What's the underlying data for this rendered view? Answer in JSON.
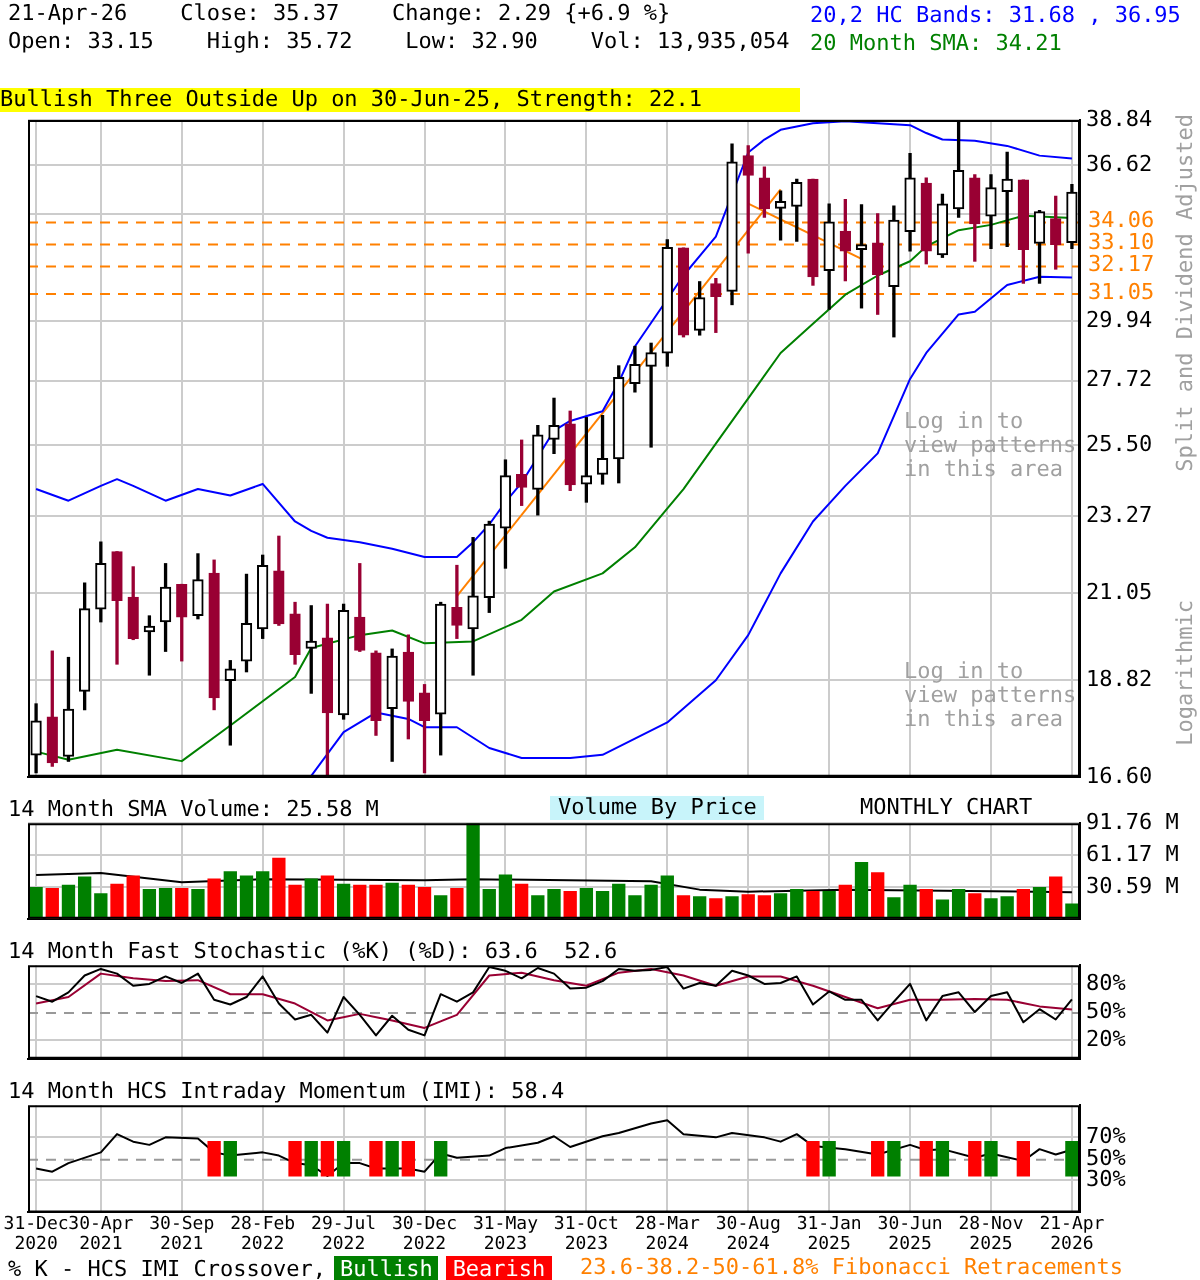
{
  "chart_data": [
    {
      "type": "candlestick",
      "title": "21-Apr-26    Close: 35.37    Change: 2.29 {+6.9 %}",
      "subtitle": "Open: 33.15    High: 35.72    Low: 32.90    Vol: 13,935,054",
      "ylabel": "Split and Dividend Adjusted",
      "categories": [
        null,
        null,
        null,
        null,
        null,
        null,
        null,
        null,
        null,
        null,
        null,
        null,
        null,
        null,
        null,
        null,
        null,
        null,
        null,
        null,
        null,
        null,
        null,
        null,
        null,
        null,
        null,
        null,
        null,
        null,
        null,
        null,
        null,
        null,
        null,
        null,
        null,
        null,
        null,
        null,
        null,
        null,
        null,
        null,
        null,
        null,
        null,
        null,
        null,
        null,
        null,
        null,
        null,
        null,
        null,
        null,
        null,
        null,
        null,
        null,
        null,
        null,
        null,
        null,
        null
      ],
      "log": true,
      "ylim": [
        16.6,
        38.84
      ],
      "yticks": [
        {
          "value": 16.6,
          "label": "16.60"
        },
        18.82,
        21.05,
        23.27,
        {
          "value": 25.5,
          "label": "25.50"
        },
        27.72,
        29.94,
        {
          "value": 32.17,
          "label": null
        },
        {
          "value": 34.39,
          "label": null
        },
        36.62,
        38.84
      ],
      "grid": true,
      "tick_labels": "y",
      "legend": "top right",
      "series": [
        {
          "colors": [
            "#000000",
            "#990033",
            "#000000",
            "#000000",
            "#000000",
            "#990033",
            "#990033",
            "#000000",
            "#000000",
            "#990033",
            "#000000",
            "#990033",
            "#000000",
            "#000000",
            "#000000",
            "#990033",
            "#990033",
            "#000000",
            "#990033",
            "#000000",
            "#990033",
            "#990033",
            "#000000",
            "#990033",
            "#990033",
            "#000000",
            "#990033",
            "#000000",
            "#000000",
            "#000000",
            "#990033",
            "#000000",
            "#000000",
            "#990033",
            "#000000",
            "#000000",
            "#000000",
            "#000000",
            "#000000",
            "#000000",
            "#990033",
            "#000000",
            "#990033",
            "#000000",
            "#990033",
            "#990033",
            "#000000",
            "#000000",
            "#990033",
            "#000000",
            "#990033",
            "#000000",
            "#990033",
            "#000000",
            "#000000",
            "#990033",
            "#000000",
            "#000000",
            "#990033",
            "#000000",
            "#000000",
            "#990033",
            "#000000",
            "#990033",
            "#000000"
          ],
          "ohlc": [
            [
              17.08,
              18.24,
              16.69,
              17.84
            ],
            [
              17.93,
              19.53,
              16.83,
              16.91
            ],
            [
              17.05,
              19.37,
              16.94,
              18.11
            ],
            [
              18.55,
              21.33,
              18.11,
              20.63
            ],
            [
              20.63,
              22.49,
              20.29,
              21.87
            ],
            [
              22.21,
              22.21,
              19.21,
              20.86
            ],
            [
              20.94,
              21.78,
              19.83,
              19.86
            ],
            [
              20.03,
              20.44,
              18.94,
              20.17
            ],
            [
              20.29,
              21.87,
              19.53,
              21.21
            ],
            [
              21.29,
              21.29,
              19.29,
              20.42
            ],
            [
              20.46,
              22.15,
              20.37,
              21.42
            ],
            [
              21.6,
              21.97,
              18.11,
              18.39
            ],
            [
              18.81,
              19.29,
              17.3,
              19.08
            ],
            [
              19.29,
              21.57,
              19.02,
              20.24
            ],
            [
              20.11,
              22.11,
              19.86,
              21.82
            ],
            [
              21.66,
              22.66,
              20.2,
              20.24
            ],
            [
              20.49,
              20.8,
              19.21,
              19.45
            ],
            [
              19.61,
              20.71,
              18.5,
              19.78
            ],
            [
              19.86,
              20.75,
              16.62,
              18.04
            ],
            [
              17.99,
              20.75,
              17.89,
              20.58
            ],
            [
              20.4,
              21.87,
              19.53,
              19.56
            ],
            [
              19.48,
              19.53,
              17.52,
              17.86
            ],
            [
              18.14,
              19.58,
              16.94,
              19.4
            ],
            [
              19.5,
              19.94,
              17.44,
              18.31
            ],
            [
              18.5,
              18.7,
              16.69,
              17.86
            ],
            [
              18.01,
              20.8,
              17.08,
              20.75
            ],
            [
              20.66,
              21.82,
              19.86,
              20.2
            ],
            [
              20.11,
              22.62,
              18.94,
              20.97
            ],
            [
              20.94,
              23.1,
              20.54,
              23.01
            ],
            [
              22.91,
              25.01,
              21.75,
              24.5
            ],
            [
              24.54,
              25.66,
              23.59,
              24.15
            ],
            [
              24.09,
              26.15,
              23.3,
              25.83
            ],
            [
              25.7,
              27.09,
              25.23,
              26.15
            ],
            [
              26.2,
              26.64,
              24.05,
              24.23
            ],
            [
              24.25,
              26.42,
              23.69,
              24.5
            ],
            [
              24.56,
              26.49,
              24.25,
              25.06
            ],
            [
              25.06,
              28.25,
              24.29,
              27.83
            ],
            [
              27.62,
              28.97,
              27.32,
              28.3
            ],
            [
              28.25,
              29.09,
              25.44,
              28.73
            ],
            [
              28.73,
              33.26,
              28.25,
              32.93
            ],
            [
              32.9,
              32.9,
              29.34,
              29.41
            ],
            [
              29.59,
              31.5,
              29.41,
              30.85
            ],
            [
              31.42,
              31.63,
              29.51,
              30.91
            ],
            [
              31.13,
              37.65,
              30.59,
              36.78
            ],
            [
              37.08,
              37.56,
              32.71,
              36.17
            ],
            [
              36.02,
              36.54,
              34.25,
              34.63
            ],
            [
              34.66,
              35.42,
              33.26,
              34.95
            ],
            [
              34.74,
              35.96,
              33.21,
              35.81
            ],
            [
              35.96,
              35.96,
              31.37,
              31.71
            ],
            [
              31.97,
              34.83,
              30.41,
              34.03
            ],
            [
              33.63,
              35.03,
              31.55,
              32.79
            ],
            [
              32.85,
              34.8,
              30.46,
              33.04
            ],
            [
              33.12,
              34.4,
              30.21,
              31.81
            ],
            [
              31.32,
              34.74,
              29.34,
              34.11
            ],
            [
              33.63,
              37.18,
              32.79,
              36.02
            ],
            [
              35.78,
              36.02,
              32.25,
              32.79
            ],
            [
              32.63,
              35.27,
              32.52,
              34.83
            ],
            [
              34.63,
              38.78,
              34.25,
              36.38
            ],
            [
              36.02,
              36.17,
              32.36,
              33.97
            ],
            [
              34.31,
              36.17,
              32.9,
              35.57
            ],
            [
              35.42,
              37.24,
              32.98,
              35.96
            ],
            [
              35.93,
              35.93,
              31.45,
              32.85
            ],
            [
              33.12,
              34.54,
              31.45,
              34.48
            ],
            [
              34.17,
              35.18,
              32.03,
              33.07
            ],
            [
              33.15,
              35.72,
              32.9,
              35.37
            ]
          ]
        },
        {
          "type": "line",
          "name": "20,2 HC Bands: 31.68 , 36.95",
          "color": "#0000ff",
          "values": [
            24.09,
            null,
            23.73,
            null,
            24.19,
            24.4,
            24.19,
            null,
            23.73,
            null,
            24.09,
            null,
            23.89,
            null,
            24.25,
            null,
            23.1,
            22.82,
            22.62,
            null,
            22.49,
            null,
            22.3,
            null,
            22.06,
            null,
            22.06,
            22.49,
            23.01,
            23.69,
            24.29,
            null,
            25.98,
            26.31,
            null,
            26.64,
            27.66,
            28.97,
            null,
            null,
            31.76,
            null,
            33.4,
            null,
            37.24,
            37.87,
            38.35,
            null,
            38.68,
            null,
            38.78,
            null,
            38.68,
            null,
            38.58,
            38.19,
            37.87,
            null,
            37.81,
            null,
            37.56,
            null,
            37.09,
            null,
            36.95
          ]
        },
        {
          "type": "line",
          "color": "#0000ff",
          "values": [
            null,
            null,
            null,
            null,
            null,
            null,
            null,
            null,
            null,
            null,
            null,
            null,
            null,
            null,
            null,
            null,
            null,
            16.62,
            null,
            17.59,
            null,
            18.04,
            null,
            17.89,
            17.7,
            null,
            17.7,
            null,
            17.23,
            null,
            17.01,
            null,
            null,
            17.01,
            null,
            17.08,
            null,
            17.44,
            null,
            17.81,
            null,
            null,
            18.81,
            null,
            19.94,
            null,
            21.6,
            null,
            23.1,
            null,
            24.19,
            null,
            25.23,
            null,
            27.78,
            28.73,
            null,
            30.2,
            30.3,
            null,
            31.37,
            null,
            31.71,
            null,
            31.68
          ]
        },
        {
          "type": "line",
          "name": "20 Month SMA: 34.21",
          "color": "#008000",
          "values": [
            17.15,
            null,
            16.97,
            null,
            null,
            17.19,
            null,
            null,
            null,
            16.94,
            null,
            null,
            17.74,
            null,
            null,
            null,
            18.89,
            19.61,
            null,
            null,
            19.94,
            null,
            20.06,
            null,
            19.73,
            null,
            null,
            19.78,
            null,
            null,
            20.34,
            null,
            21.1,
            null,
            null,
            21.6,
            null,
            22.34,
            null,
            null,
            24.09,
            null,
            25.55,
            null,
            27.09,
            null,
            28.73,
            null,
            29.84,
            null,
            30.98,
            null,
            31.76,
            null,
            32.35,
            32.98,
            null,
            33.68,
            null,
            33.91,
            null,
            34.31,
            null,
            null,
            34.21
          ]
        },
        {
          "type": "line",
          "color": "#ff8000",
          "values": [
            null,
            null,
            null,
            null,
            null,
            null,
            null,
            null,
            null,
            null,
            null,
            null,
            null,
            null,
            null,
            null,
            null,
            null,
            null,
            null,
            null,
            null,
            null,
            null,
            null,
            null,
            20.97,
            null,
            null,
            null,
            null,
            null,
            null,
            null,
            null,
            null,
            null,
            null,
            null,
            null,
            null,
            null,
            null,
            null,
            null,
            null,
            35.5,
            null,
            null,
            null,
            null,
            null,
            null,
            null,
            null,
            null,
            null,
            null,
            null,
            null,
            null,
            null,
            null,
            null,
            null
          ]
        },
        {
          "type": "line",
          "color": "#ff8000",
          "values": [
            null,
            null,
            null,
            null,
            null,
            null,
            null,
            null,
            null,
            null,
            null,
            null,
            null,
            null,
            null,
            null,
            null,
            null,
            null,
            null,
            null,
            null,
            null,
            null,
            null,
            null,
            null,
            null,
            null,
            null,
            null,
            null,
            null,
            null,
            null,
            null,
            null,
            null,
            null,
            null,
            null,
            null,
            null,
            null,
            34.86,
            null,
            null,
            null,
            null,
            null,
            null,
            32.45,
            null,
            null,
            null,
            null,
            null,
            null,
            null,
            null,
            null,
            null,
            null,
            null,
            null
          ]
        }
      ],
      "ref_lines": [
        {
          "axis": "y",
          "value": 34.06,
          "label": "34.06",
          "color": "#ff8000",
          "line_style": "dashed"
        },
        {
          "axis": "y",
          "value": 33.1,
          "label": "33.10",
          "color": "#ff8000",
          "line_style": "dashed"
        },
        {
          "axis": "y",
          "value": 32.17,
          "label": "32.17",
          "color": "#ff8000",
          "line_style": "dashed"
        },
        {
          "axis": "y",
          "value": 31.05,
          "label": "31.05",
          "color": "#ff8000",
          "line_style": "dashed"
        }
      ],
      "annotations": [
        "Bullish Three Outside Up on 30-Jun-25, Strength: 22.1",
        "Log in to view patterns in this area",
        "Log in to view patterns in this area",
        "Logarithmic",
        "23.6-38.2-50-61.8% Fibonacci Retracements"
      ]
    },
    {
      "type": "bar",
      "title": "14 Month SMA Volume: 25.58 M",
      "categories": [
        null,
        null,
        null,
        null,
        null,
        null,
        null,
        null,
        null,
        null,
        null,
        null,
        null,
        null,
        null,
        null,
        null,
        null,
        null,
        null,
        null,
        null,
        null,
        null,
        null,
        null,
        null,
        null,
        null,
        null,
        null,
        null,
        null,
        null,
        null,
        null,
        null,
        null,
        null,
        null,
        null,
        null,
        null,
        null,
        null,
        null,
        null,
        null,
        null,
        null,
        null,
        null,
        null,
        null,
        null,
        null,
        null,
        null,
        null,
        null,
        null,
        null,
        null,
        null,
        null
      ],
      "ylim": [
        0,
        91.76
      ],
      "yticks": [
        {
          "value": 30.59,
          "label": "30.59 M"
        },
        {
          "value": 61.17,
          "label": "61.17 M"
        },
        {
          "value": 91.76,
          "label": "91.76 M"
        }
      ],
      "grid": true,
      "tick_labels": "y",
      "series": [
        {
          "colors": [
            "#008000",
            "#ff0000",
            "#008000",
            "#008000",
            "#008000",
            "#ff0000",
            "#ff0000",
            "#008000",
            "#008000",
            "#ff0000",
            "#008000",
            "#ff0000",
            "#008000",
            "#008000",
            "#008000",
            "#ff0000",
            "#ff0000",
            "#008000",
            "#ff0000",
            "#008000",
            "#ff0000",
            "#ff0000",
            "#008000",
            "#ff0000",
            "#ff0000",
            "#008000",
            "#ff0000",
            "#008000",
            "#008000",
            "#008000",
            "#ff0000",
            "#008000",
            "#008000",
            "#ff0000",
            "#008000",
            "#008000",
            "#008000",
            "#008000",
            "#008000",
            "#008000",
            "#ff0000",
            "#008000",
            "#ff0000",
            "#008000",
            "#ff0000",
            "#ff0000",
            "#008000",
            "#008000",
            "#ff0000",
            "#008000",
            "#ff0000",
            "#008000",
            "#ff0000",
            "#008000",
            "#008000",
            "#ff0000",
            "#008000",
            "#008000",
            "#ff0000",
            "#008000",
            "#008000",
            "#ff0000",
            "#008000",
            "#ff0000",
            "#008000"
          ],
          "values": [
            30,
            29,
            32,
            40,
            24,
            33,
            41,
            28,
            29,
            29,
            28,
            38,
            45,
            41,
            45,
            58,
            32,
            38,
            41,
            33,
            32,
            32,
            34,
            32,
            30,
            22,
            29,
            91,
            28,
            42,
            33,
            22,
            28,
            26,
            29,
            26,
            33,
            22,
            32,
            41,
            22,
            21,
            19,
            21,
            23,
            22,
            24,
            28,
            26,
            26,
            32,
            54,
            44,
            20,
            32,
            28,
            18,
            28,
            24,
            19,
            21,
            28,
            30,
            40,
            14
          ]
        },
        {
          "type": "line",
          "color": "#000000",
          "values": [
            42,
            null,
            null,
            null,
            44,
            null,
            null,
            null,
            null,
            35,
            null,
            null,
            null,
            null,
            38,
            null,
            null,
            null,
            null,
            null,
            null,
            null,
            null,
            null,
            37,
            null,
            null,
            38,
            null,
            null,
            null,
            null,
            null,
            null,
            null,
            null,
            null,
            null,
            36,
            null,
            null,
            28,
            null,
            null,
            26,
            null,
            null,
            null,
            null,
            null,
            28,
            null,
            null,
            null,
            null,
            null,
            null,
            null,
            null,
            null,
            null,
            null,
            null,
            null,
            25.58
          ]
        }
      ],
      "annotations": [
        "Volume By Price",
        "MONTHLY CHART"
      ]
    },
    {
      "type": "line",
      "title": "14 Month Fast Stochastic (%K) (%D): 63.6  52.6",
      "categories": [
        null,
        null,
        null,
        null,
        null,
        null,
        null,
        null,
        null,
        null,
        null,
        null,
        null,
        null,
        null,
        null,
        null,
        null,
        null,
        null,
        null,
        null,
        null,
        null,
        null,
        null,
        null,
        null,
        null,
        null,
        null,
        null,
        null,
        null,
        null,
        null,
        null,
        null,
        null,
        null,
        null,
        null,
        null,
        null,
        null,
        null,
        null,
        null,
        null,
        null,
        null,
        null,
        null,
        null,
        null,
        null,
        null,
        null,
        null,
        null,
        null,
        null,
        null,
        null,
        null
      ],
      "ylim": [
        0,
        100
      ],
      "yticks": [
        {
          "value": 20,
          "label": "20%"
        },
        {
          "value": 50,
          "label": "50%"
        },
        {
          "value": 80,
          "label": "80%"
        }
      ],
      "grid": true,
      "tick_labels": "y",
      "series": [
        {
          "color": "#000000",
          "values": [
            67,
            61,
            71,
            89,
            96,
            91,
            78,
            80,
            88,
            81,
            91,
            63,
            58,
            66,
            88,
            59,
            42,
            47,
            28,
            66,
            47,
            25,
            46,
            31,
            25,
            69,
            61,
            71,
            98,
            94,
            86,
            97,
            91,
            75,
            76,
            83,
            96,
            94,
            95,
            98,
            75,
            81,
            78,
            94,
            89,
            80,
            81,
            88,
            58,
            72,
            63,
            63,
            41,
            61,
            80,
            41,
            67,
            71,
            50,
            67,
            71,
            39,
            53,
            42,
            63.6
          ]
        },
        {
          "type": "line",
          "color": "#990033",
          "values": [
            59,
            null,
            66,
            null,
            91,
            null,
            86,
            null,
            83,
            null,
            84,
            null,
            69,
            null,
            69,
            null,
            59,
            null,
            41,
            null,
            48,
            null,
            41,
            null,
            33,
            null,
            47,
            null,
            89,
            null,
            92,
            null,
            84,
            null,
            78,
            null,
            92,
            null,
            96,
            null,
            89,
            null,
            78,
            null,
            88,
            null,
            88,
            null,
            78,
            null,
            66,
            null,
            54,
            null,
            63,
            null,
            63,
            null,
            64,
            null,
            63,
            null,
            56,
            null,
            52.6
          ]
        }
      ],
      "ref_lines": [
        {
          "axis": "y",
          "value": 50,
          "color": "#999999",
          "line_style": "dashed"
        }
      ]
    },
    {
      "type": "line",
      "title": "14 Month HCS Intraday Momentum (IMI): 58.4",
      "categories": [
        "31-Dec 2020",
        null,
        null,
        null,
        "30-Apr 2021",
        null,
        null,
        null,
        null,
        "30-Sep 2021",
        null,
        null,
        null,
        null,
        "28-Feb 2022",
        null,
        null,
        null,
        null,
        "29-Jul 2022",
        null,
        null,
        null,
        null,
        "30-Dec 2022",
        null,
        null,
        null,
        null,
        "31-May 2023",
        null,
        null,
        null,
        null,
        "31-Oct 2023",
        null,
        null,
        null,
        null,
        "28-Mar 2024",
        null,
        null,
        null,
        null,
        "30-Aug 2024",
        null,
        null,
        null,
        null,
        "31-Jan 2025",
        null,
        null,
        null,
        null,
        "30-Jun 2025",
        null,
        null,
        null,
        null,
        "28-Nov 2025",
        null,
        null,
        null,
        null,
        "21-Apr 2026"
      ],
      "ylim": [
        0,
        100
      ],
      "yticks": [
        {
          "value": 30,
          "label": "30%"
        },
        {
          "value": 50,
          "label": "50%"
        },
        {
          "value": 70,
          "label": "70%"
        }
      ],
      "grid": true,
      "legend": "bottom",
      "legend_title": "% K - HCS IMI Crossover,",
      "series": [
        {
          "color": "#000000",
          "values": [
            41,
            38,
            46,
            null,
            56,
            73,
            66,
            63,
            70,
            null,
            69,
            56,
            53,
            null,
            56,
            53,
            46,
            44,
            34,
            46,
            46,
            41,
            null,
            41,
            38,
            55,
            51,
            null,
            53,
            60,
            null,
            65,
            71,
            61,
            null,
            71,
            74,
            null,
            83,
            86,
            73,
            null,
            70,
            74,
            null,
            70,
            66,
            73,
            62,
            null,
            59,
            null,
            54,
            null,
            63,
            58,
            59,
            null,
            51,
            55,
            null,
            48,
            59,
            54,
            58.4
          ]
        },
        {
          "type": "bar",
          "name": "Bullish",
          "color": "#008000",
          "values": [
            null,
            null,
            null,
            null,
            null,
            null,
            null,
            null,
            null,
            null,
            null,
            null,
            32,
            null,
            null,
            null,
            null,
            32,
            null,
            32,
            null,
            null,
            32,
            null,
            null,
            32,
            null,
            null,
            null,
            null,
            null,
            null,
            null,
            null,
            null,
            null,
            null,
            null,
            null,
            null,
            null,
            null,
            null,
            null,
            null,
            null,
            null,
            null,
            null,
            32,
            null,
            null,
            null,
            32,
            null,
            null,
            32,
            null,
            null,
            32,
            null,
            null,
            null,
            null,
            32
          ],
          "base": [
            null,
            null,
            null,
            null,
            null,
            null,
            null,
            null,
            null,
            null,
            null,
            null,
            34,
            null,
            null,
            null,
            null,
            34,
            null,
            34,
            null,
            null,
            34,
            null,
            null,
            34,
            null,
            null,
            null,
            null,
            null,
            null,
            null,
            null,
            null,
            null,
            null,
            null,
            null,
            null,
            null,
            null,
            null,
            null,
            null,
            null,
            null,
            null,
            null,
            34,
            null,
            null,
            null,
            34,
            null,
            null,
            34,
            null,
            null,
            34,
            null,
            null,
            null,
            null,
            34
          ]
        },
        {
          "type": "bar",
          "name": "Bearish",
          "color": "#ff0000",
          "values": [
            null,
            null,
            null,
            null,
            null,
            null,
            null,
            null,
            null,
            null,
            null,
            32,
            null,
            null,
            null,
            null,
            32,
            null,
            32,
            null,
            null,
            32,
            null,
            32,
            null,
            null,
            null,
            null,
            null,
            null,
            null,
            null,
            null,
            null,
            null,
            null,
            null,
            null,
            null,
            null,
            null,
            null,
            null,
            null,
            null,
            null,
            null,
            null,
            32,
            null,
            null,
            null,
            32,
            null,
            null,
            32,
            null,
            null,
            32,
            null,
            null,
            32,
            null,
            null,
            null
          ],
          "base": [
            null,
            null,
            null,
            null,
            null,
            null,
            null,
            null,
            null,
            null,
            null,
            34,
            null,
            null,
            null,
            null,
            34,
            null,
            34,
            null,
            null,
            34,
            null,
            34,
            null,
            null,
            null,
            null,
            null,
            null,
            null,
            null,
            null,
            null,
            null,
            null,
            null,
            null,
            null,
            null,
            null,
            null,
            null,
            null,
            null,
            null,
            null,
            null,
            34,
            null,
            null,
            null,
            34,
            null,
            null,
            34,
            null,
            null,
            34,
            null,
            null,
            34,
            null,
            null,
            null
          ]
        }
      ],
      "ref_lines": [
        {
          "axis": "y",
          "value": 50,
          "color": "#999999",
          "line_style": "dashed"
        }
      ]
    }
  ]
}
